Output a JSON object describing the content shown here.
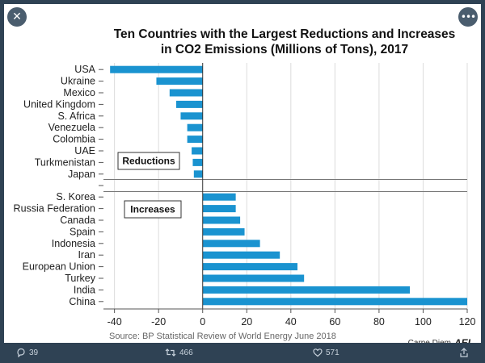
{
  "header": {
    "close_icon": "close-icon",
    "more_icon": "more-options-icon"
  },
  "chart_data": {
    "type": "bar",
    "orientation": "horizontal",
    "title": "Ten Countries with the Largest Reductions and Increases",
    "subtitle": "in CO2 Emissions (Millions of Tons), 2017",
    "xlabel": "",
    "ylabel": "",
    "xlim": [
      -45,
      120
    ],
    "xticks": [
      -40,
      -20,
      0,
      20,
      40,
      60,
      80,
      100,
      120
    ],
    "xtick_labels": [
      "-40",
      "-20",
      "0",
      "20",
      "40",
      "60",
      "80",
      "100",
      "120"
    ],
    "grid": "vertical",
    "bar_color": "#1a93d0",
    "groups": [
      {
        "label": "Reductions",
        "categories": [
          "USA",
          "Ukraine",
          "Mexico",
          "United Kingdom",
          "S. Africa",
          "Venezuela",
          "Colombia",
          "UAE",
          "Turkmenistan",
          "Japan"
        ],
        "values": [
          -42,
          -21,
          -15,
          -12,
          -10,
          -7,
          -7,
          -5,
          -4.5,
          -4
        ]
      },
      {
        "label": "Increases",
        "categories": [
          "S. Korea",
          "Russia Federation",
          "Canada",
          "Spain",
          "Indonesia",
          "Iran",
          "European Union",
          "Turkey",
          "India",
          "China"
        ],
        "values": [
          15,
          15,
          17,
          19,
          26,
          35,
          43,
          46,
          94,
          120
        ]
      }
    ],
    "source": "Source: BP Statistical Review of World Energy June 2018"
  },
  "footer": {
    "replies": "39",
    "retweets": "466",
    "likes": "571",
    "brand": "Carpe Diem",
    "brand_mark": "AEI",
    "colors": {
      "icon": "#c8d2dc"
    }
  }
}
